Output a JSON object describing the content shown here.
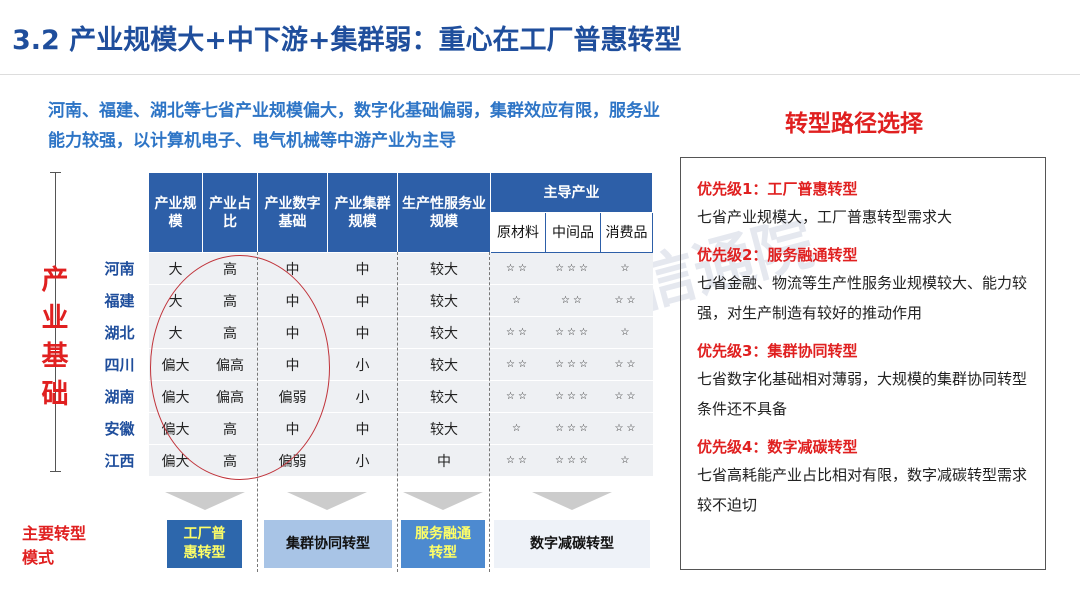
{
  "title": "3.2 产业规模大+中下游+集群弱：重心在工厂普惠转型",
  "intro": "河南、福建、湖北等七省产业规模偏大，数字化基础偏弱，集群效应有限，服务业能力较强，以计算机电子、电气机械等中游产业为主导",
  "side_label": "产业基础",
  "watermark": "CAICT 中国信通院",
  "table": {
    "headers": [
      "产业规模",
      "产业占比",
      "产业数字基础",
      "产业集群规模",
      "生产性服务业规模",
      "主导产业"
    ],
    "sub_headers": [
      "原材料",
      "中间品",
      "消费品"
    ],
    "rows": [
      {
        "prov": "河南",
        "c": [
          "大",
          "高",
          "中",
          "中",
          "较大",
          "☆☆",
          "☆☆☆",
          "☆"
        ]
      },
      {
        "prov": "福建",
        "c": [
          "大",
          "高",
          "中",
          "中",
          "较大",
          "☆",
          "☆☆",
          "☆☆"
        ]
      },
      {
        "prov": "湖北",
        "c": [
          "大",
          "高",
          "中",
          "中",
          "较大",
          "☆☆",
          "☆☆☆",
          "☆"
        ]
      },
      {
        "prov": "四川",
        "c": [
          "偏大",
          "偏高",
          "中",
          "小",
          "较大",
          "☆☆",
          "☆☆☆",
          "☆☆"
        ]
      },
      {
        "prov": "湖南",
        "c": [
          "偏大",
          "偏高",
          "偏弱",
          "小",
          "较大",
          "☆☆",
          "☆☆☆",
          "☆☆"
        ]
      },
      {
        "prov": "安徽",
        "c": [
          "偏大",
          "高",
          "中",
          "中",
          "较大",
          "☆",
          "☆☆☆",
          "☆☆"
        ]
      },
      {
        "prov": "江西",
        "c": [
          "偏大",
          "高",
          "偏弱",
          "小",
          "中",
          "☆☆",
          "☆☆☆",
          "☆"
        ]
      }
    ]
  },
  "modes_label": "主要转型模式",
  "modes": [
    "工厂普惠转型",
    "集群协同转型",
    "服务融通转型",
    "数字减碳转型"
  ],
  "right": {
    "title": "转型路径选择",
    "items": [
      {
        "h": "优先级1：工厂普惠转型",
        "t": "七省产业规模大，工厂普惠转型需求大"
      },
      {
        "h": "优先级2：服务融通转型",
        "t": "七省金融、物流等生产性服务业规模较大、能力较强，对生产制造有较好的推动作用"
      },
      {
        "h": "优先级3：集群协同转型",
        "t": "七省数字化基础相对薄弱，大规模的集群协同转型条件还不具备"
      },
      {
        "h": "优先级4：数字减碳转型",
        "t": "七省高耗能产业占比相对有限，数字减碳转型需求较不迫切"
      }
    ]
  }
}
